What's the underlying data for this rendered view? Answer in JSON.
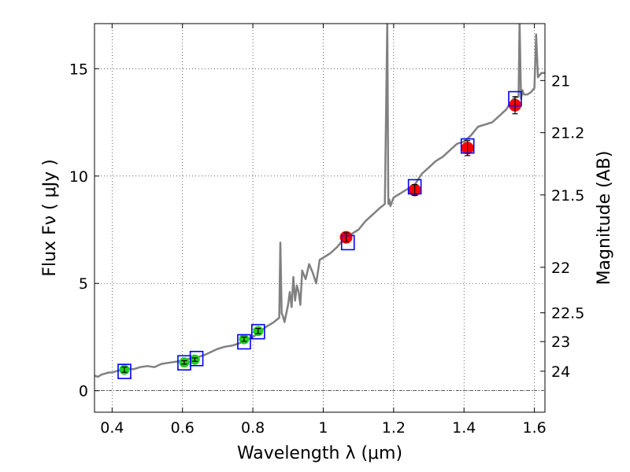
{
  "chart_data": {
    "type": "scatter",
    "title": "",
    "xlabel": "Wavelength  λ (μm)",
    "ylabel": "Flux  Fν ( μJy )",
    "ylabel_right": "Magnitude (AB)",
    "xlim": [
      0.35,
      1.63
    ],
    "ylim": [
      -1.0,
      17.1
    ],
    "grid": true,
    "x_ticks": [
      {
        "value": 0.4,
        "label": "0.4"
      },
      {
        "value": 0.6,
        "label": "0.6"
      },
      {
        "value": 0.8,
        "label": "0.8"
      },
      {
        "value": 1.0,
        "label": "1"
      },
      {
        "value": 1.2,
        "label": "1.2"
      },
      {
        "value": 1.4,
        "label": "1.4"
      },
      {
        "value": 1.6,
        "label": "1.6"
      }
    ],
    "y_ticks": [
      {
        "value": 0,
        "label": "0"
      },
      {
        "value": 5,
        "label": "5"
      },
      {
        "value": 10,
        "label": "10"
      },
      {
        "value": 15,
        "label": "15"
      }
    ],
    "mag_ticks": [
      {
        "flux": 14.45,
        "label": "21"
      },
      {
        "flux": 12.02,
        "label": "21.2"
      },
      {
        "flux": 9.12,
        "label": "21.5"
      },
      {
        "flux": 5.75,
        "label": "22"
      },
      {
        "flux": 3.63,
        "label": "22.5"
      },
      {
        "flux": 2.29,
        "label": "23"
      },
      {
        "flux": 0.91,
        "label": "24"
      }
    ],
    "series": [
      {
        "name": "model-spectrum",
        "type": "line",
        "color": "#808080",
        "x": [
          0.35,
          0.36,
          0.37,
          0.38,
          0.39,
          0.4,
          0.42,
          0.44,
          0.46,
          0.48,
          0.5,
          0.52,
          0.54,
          0.56,
          0.58,
          0.6,
          0.62,
          0.64,
          0.66,
          0.68,
          0.7,
          0.72,
          0.74,
          0.76,
          0.78,
          0.8,
          0.82,
          0.84,
          0.86,
          0.875,
          0.878,
          0.882,
          0.885,
          0.89,
          0.9,
          0.905,
          0.91,
          0.915,
          0.92,
          0.925,
          0.93,
          0.935,
          0.94,
          0.95,
          0.96,
          0.97,
          0.98,
          0.99,
          1.0,
          1.02,
          1.04,
          1.06,
          1.08,
          1.1,
          1.12,
          1.14,
          1.16,
          1.175,
          1.182,
          1.185,
          1.188,
          1.191,
          1.2,
          1.22,
          1.24,
          1.26,
          1.28,
          1.3,
          1.32,
          1.34,
          1.36,
          1.38,
          1.4,
          1.42,
          1.44,
          1.46,
          1.48,
          1.5,
          1.52,
          1.54,
          1.555,
          1.558,
          1.562,
          1.566,
          1.57,
          1.58,
          1.59,
          1.6,
          1.605,
          1.61,
          1.62,
          1.63
        ],
        "y": [
          0.7,
          0.65,
          0.75,
          0.8,
          0.85,
          0.85,
          0.95,
          1.05,
          1.0,
          1.1,
          1.15,
          1.1,
          1.25,
          1.3,
          1.35,
          1.4,
          1.5,
          1.55,
          1.65,
          1.8,
          1.95,
          2.05,
          2.1,
          2.2,
          2.35,
          2.5,
          2.75,
          3.0,
          3.2,
          3.4,
          6.9,
          3.6,
          3.5,
          3.2,
          4.0,
          4.6,
          3.9,
          5.3,
          4.2,
          4.9,
          4.6,
          4.0,
          5.6,
          5.2,
          5.9,
          5.5,
          5.0,
          6.1,
          6.2,
          6.4,
          6.7,
          7.1,
          7.3,
          7.5,
          7.9,
          8.2,
          8.5,
          8.7,
          17.2,
          8.7,
          8.9,
          8.6,
          9.0,
          9.2,
          9.4,
          9.6,
          10.1,
          10.4,
          10.7,
          10.9,
          11.2,
          11.5,
          11.6,
          11.9,
          12.3,
          12.4,
          12.5,
          12.8,
          13.1,
          13.6,
          13.7,
          17.2,
          13.6,
          14.0,
          13.8,
          13.8,
          13.9,
          14.1,
          16.6,
          14.6,
          14.8,
          14.8
        ]
      },
      {
        "name": "photometry-green",
        "type": "points",
        "color": "#22cc22",
        "x": [
          0.435,
          0.605,
          0.635,
          0.775,
          0.815
        ],
        "y": [
          0.98,
          1.32,
          1.45,
          2.4,
          2.78
        ],
        "err": [
          0.12,
          0.08,
          0.08,
          0.1,
          0.12
        ]
      },
      {
        "name": "photometry-red",
        "type": "points",
        "color": "#ff0000",
        "x": [
          1.065,
          1.26,
          1.41,
          1.545
        ],
        "y": [
          7.15,
          9.35,
          11.3,
          13.3
        ],
        "err": [
          0.2,
          0.25,
          0.35,
          0.4
        ]
      },
      {
        "name": "model-band-flux",
        "type": "squares",
        "color": "#0000ff",
        "x": [
          0.435,
          0.605,
          0.64,
          0.775,
          0.815,
          1.07,
          1.26,
          1.41,
          1.545
        ],
        "y": [
          0.9,
          1.3,
          1.5,
          2.28,
          2.75,
          6.9,
          9.5,
          11.4,
          13.6
        ]
      }
    ]
  }
}
